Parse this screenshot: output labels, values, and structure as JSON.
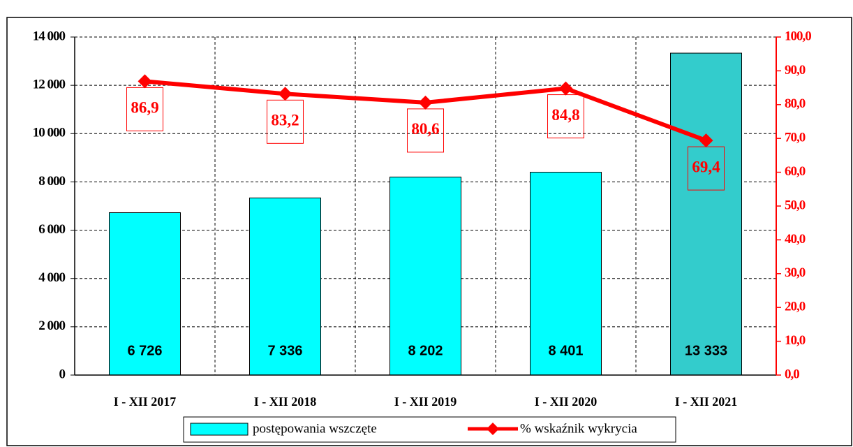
{
  "chart_data": {
    "type": "bar_line",
    "categories": [
      "I - XII 2017",
      "I - XII 2018",
      "I - XII 2019",
      "I - XII 2020",
      "I - XII 2021"
    ],
    "series": [
      {
        "name": "postępowania wszczęte",
        "type": "bar",
        "color": "#00ffff",
        "colors": [
          "#00ffff",
          "#00ffff",
          "#00ffff",
          "#00ffff",
          "#33cccc"
        ],
        "values": [
          6726,
          7336,
          8202,
          8401,
          13333
        ],
        "value_labels": [
          "6 726",
          "7 336",
          "8 202",
          "8 401",
          "13 333"
        ]
      },
      {
        "name": "% wskaźnik wykrycia",
        "type": "line",
        "axis": "y2",
        "color": "#ff0000",
        "values": [
          86.9,
          83.2,
          80.6,
          84.8,
          69.4
        ],
        "value_labels": [
          "86,9",
          "83,2",
          "80,6",
          "84,8",
          "69,4"
        ]
      }
    ],
    "ylim": [
      0,
      14000
    ],
    "yticks": [
      0,
      {
        "value": 2000,
        "label": "2 000"
      },
      {
        "value": 4000,
        "label": "4 000"
      },
      {
        "value": 6000,
        "label": "6 000"
      },
      {
        "value": 8000,
        "label": "8 000"
      },
      {
        "value": 10000,
        "label": "10 000"
      },
      {
        "value": 12000,
        "label": "12 000"
      },
      {
        "value": 14000,
        "label": "14 000"
      }
    ],
    "y2lim": [
      0,
      100
    ],
    "y2ticks": [
      {
        "value": 0,
        "label": "0,0"
      },
      {
        "value": 10,
        "label": "10,0"
      },
      {
        "value": 20,
        "label": "20,0"
      },
      {
        "value": 30,
        "label": "30,0"
      },
      {
        "value": 40,
        "label": "40,0"
      },
      {
        "value": 50,
        "label": "50,0"
      },
      {
        "value": 60,
        "label": "60,0"
      },
      {
        "value": 70,
        "label": "70,0"
      },
      {
        "value": 80,
        "label": "80,0"
      },
      {
        "value": 90,
        "label": "90,0"
      },
      {
        "value": 100,
        "label": "100,0"
      }
    ],
    "grid": true
  }
}
